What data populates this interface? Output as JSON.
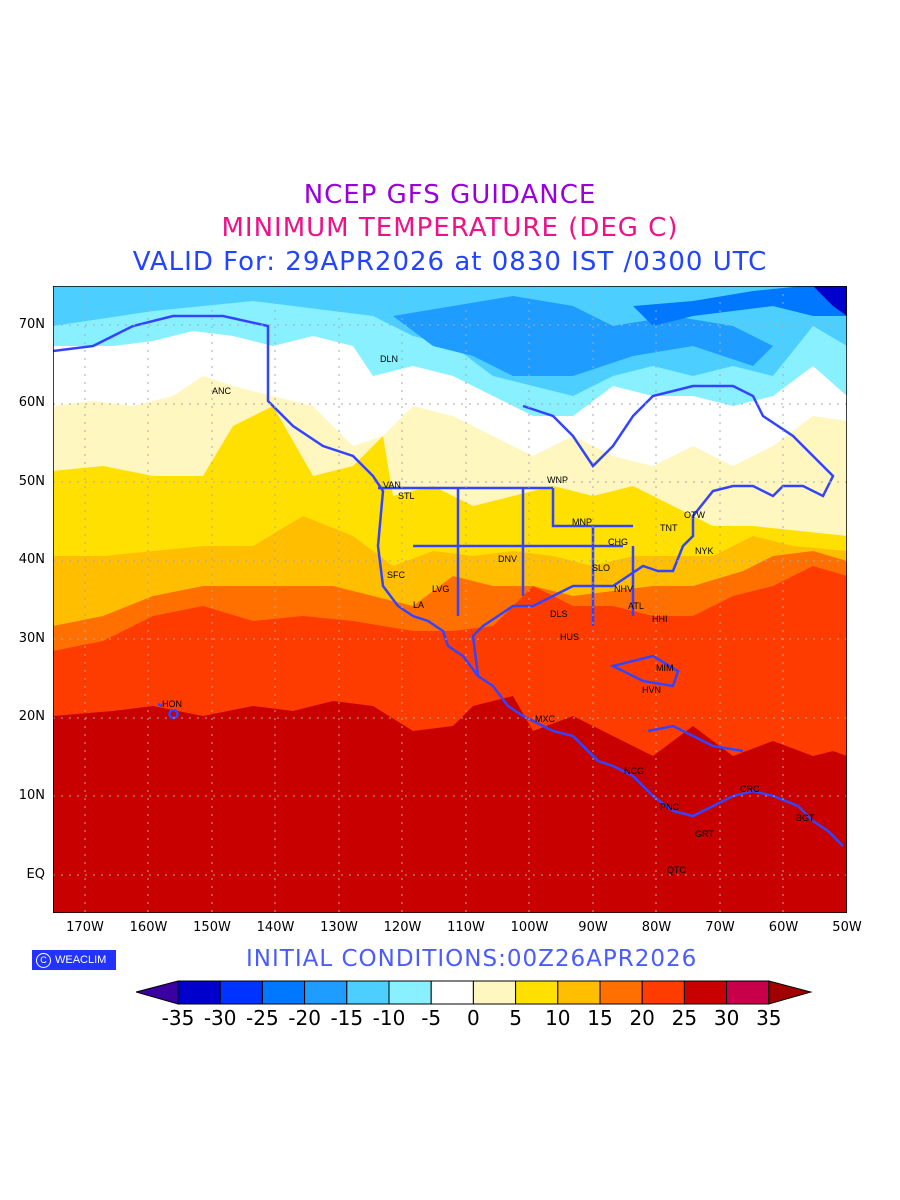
{
  "titles": {
    "line1": "NCEP GFS GUIDANCE",
    "line2": "MINIMUM TEMPERATURE (DEG C)",
    "line3": "VALID For: 29APR2026 at 0830 IST /0300 UTC"
  },
  "colors": {
    "title1": "#9900dd",
    "title2": "#ee1188",
    "title3": "#2244ff",
    "coast": "#3344ff"
  },
  "lat_labels": [
    "70N",
    "60N",
    "50N",
    "40N",
    "30N",
    "20N",
    "10N",
    "EQ"
  ],
  "lon_labels": [
    "170W",
    "160W",
    "150W",
    "140W",
    "130W",
    "120W",
    "110W",
    "100W",
    "90W",
    "80W",
    "70W",
    "60W",
    "50W"
  ],
  "cities": [
    "DLN",
    "ANC",
    "VAN",
    "STL",
    "WNP",
    "MNP",
    "CHG",
    "TNT",
    "OTW",
    "NYK",
    "SFC",
    "LVG",
    "LA",
    "DNV",
    "SLO",
    "NHV",
    "ATL",
    "HHI",
    "DLS",
    "HUS",
    "MIM",
    "HVN",
    "HON",
    "MXC",
    "NCG",
    "PNC",
    "CRC",
    "BGT",
    "GRT",
    "QTO"
  ],
  "logo": {
    "icon": "copyright-icon",
    "text": "WEACLIM"
  },
  "initial_conditions": "INITIAL  CONDITIONS:00Z26APR2026",
  "colorbar": {
    "labels": [
      "-35",
      "-30",
      "-25",
      "-20",
      "-15",
      "-10",
      "-5",
      "0",
      "5",
      "10",
      "15",
      "20",
      "25",
      "30",
      "35"
    ],
    "low_color": "#3a00a0",
    "colors": [
      "#0000cc",
      "#0033ff",
      "#0077ff",
      "#1e9cff",
      "#4ccfff",
      "#88f0ff",
      "#ffffff",
      "#fff6c0",
      "#ffe000",
      "#ffbf00",
      "#ff7000",
      "#ff3c00",
      "#c80000",
      "#c8004c"
    ],
    "high_color": "#a00000"
  }
}
